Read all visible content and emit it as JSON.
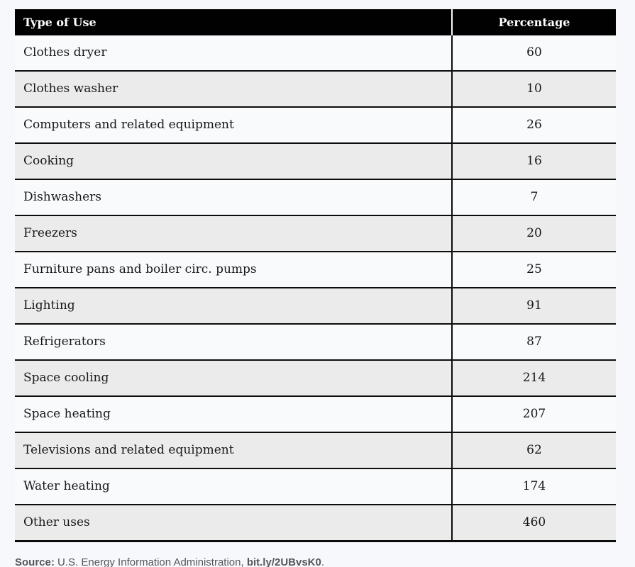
{
  "colors": {
    "page_bg": "#f7f8fb",
    "header_bg": "#010101",
    "header_text": "#ffffff",
    "row_odd_bg": "#f9fafc",
    "row_even_bg": "#ebebec",
    "border": "#0c0c0c",
    "source_text": "#54575c"
  },
  "table": {
    "headers": {
      "type_of_use": "Type of Use",
      "percentage": "Percentage"
    },
    "rows": [
      {
        "type": "Clothes dryer",
        "value": "60"
      },
      {
        "type": "Clothes washer",
        "value": "10"
      },
      {
        "type": "Computers and related equipment",
        "value": "26"
      },
      {
        "type": "Cooking",
        "value": "16"
      },
      {
        "type": "Dishwashers",
        "value": "7"
      },
      {
        "type": "Freezers",
        "value": "20"
      },
      {
        "type": "Furniture pans and boiler circ. pumps",
        "value": "25"
      },
      {
        "type": "Lighting",
        "value": "91"
      },
      {
        "type": "Refrigerators",
        "value": "87"
      },
      {
        "type": "Space cooling",
        "value": "214"
      },
      {
        "type": "Space heating",
        "value": "207"
      },
      {
        "type": "Televisions and related equipment",
        "value": "62"
      },
      {
        "type": "Water heating",
        "value": "174"
      },
      {
        "type": "Other uses",
        "value": "460"
      }
    ]
  },
  "source": {
    "label": "Source:",
    "text": " U.S. Energy Information Administration, ",
    "link": "bit.ly/2UBvsK0",
    "suffix": "."
  },
  "chart_data": {
    "type": "table",
    "title": "",
    "columns": [
      "Type of Use",
      "Percentage"
    ],
    "categories": [
      "Clothes dryer",
      "Clothes washer",
      "Computers and related equipment",
      "Cooking",
      "Dishwashers",
      "Freezers",
      "Furniture pans and boiler circ. pumps",
      "Lighting",
      "Refrigerators",
      "Space cooling",
      "Space heating",
      "Televisions and related equipment",
      "Water heating",
      "Other uses"
    ],
    "values": [
      60,
      10,
      26,
      16,
      7,
      20,
      25,
      91,
      87,
      214,
      207,
      62,
      174,
      460
    ],
    "source": "Source: U.S. Energy Information Administration, bit.ly/2UBvsK0."
  }
}
